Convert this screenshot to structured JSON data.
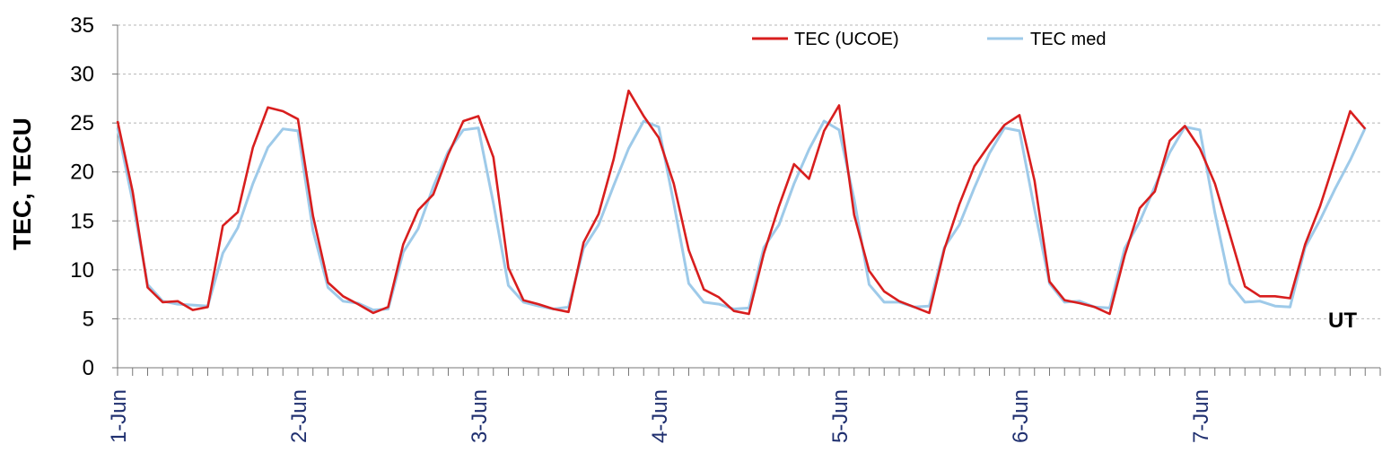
{
  "chart_data": {
    "type": "line",
    "ylabel": "TEC, TECU",
    "annotation": "UT",
    "ylim": [
      0,
      35
    ],
    "yticks": [
      0,
      5,
      10,
      15,
      20,
      25,
      30,
      35
    ],
    "grid": "horizontal dashed",
    "legend_position": "top-right",
    "x_tick_labels": [
      "1-Jun",
      "2-Jun",
      "3-Jun",
      "4-Jun",
      "5-Jun",
      "6-Jun",
      "7-Jun"
    ],
    "x_unit": "hours from 1-Jun 00 UT",
    "series": [
      {
        "name": "TEC (UCOE)",
        "color": "#d81e1e",
        "points": [
          [
            0,
            25.2
          ],
          [
            2,
            18
          ],
          [
            4,
            8.2
          ],
          [
            6,
            6.7
          ],
          [
            8,
            6.8
          ],
          [
            10,
            5.9
          ],
          [
            12,
            6.2
          ],
          [
            14,
            14.5
          ],
          [
            16,
            15.9
          ],
          [
            18,
            22.5
          ],
          [
            20,
            26.6
          ],
          [
            22,
            26.2
          ],
          [
            24,
            25.4
          ],
          [
            26,
            15.5
          ],
          [
            28,
            8.7
          ],
          [
            30,
            7.3
          ],
          [
            32,
            6.5
          ],
          [
            34,
            5.6
          ],
          [
            36,
            6.2
          ],
          [
            38,
            12.6
          ],
          [
            40,
            16.1
          ],
          [
            42,
            17.7
          ],
          [
            44,
            21.8
          ],
          [
            46,
            25.2
          ],
          [
            48,
            25.7
          ],
          [
            50,
            21.5
          ],
          [
            52,
            10.2
          ],
          [
            54,
            6.9
          ],
          [
            56,
            6.5
          ],
          [
            58,
            6
          ],
          [
            60,
            5.7
          ],
          [
            62,
            12.8
          ],
          [
            64,
            15.7
          ],
          [
            66,
            21.3
          ],
          [
            68,
            28.3
          ],
          [
            70,
            25.7
          ],
          [
            72,
            23.5
          ],
          [
            74,
            18.8
          ],
          [
            76,
            12
          ],
          [
            78,
            8
          ],
          [
            80,
            7.2
          ],
          [
            82,
            5.8
          ],
          [
            84,
            5.5
          ],
          [
            86,
            11.7
          ],
          [
            88,
            16.5
          ],
          [
            90,
            20.8
          ],
          [
            92,
            19.3
          ],
          [
            94,
            24.2
          ],
          [
            96,
            26.8
          ],
          [
            98,
            15.6
          ],
          [
            100,
            9.9
          ],
          [
            102,
            7.8
          ],
          [
            104,
            6.8
          ],
          [
            106,
            6.2
          ],
          [
            108,
            5.6
          ],
          [
            110,
            12.1
          ],
          [
            112,
            16.7
          ],
          [
            114,
            20.6
          ],
          [
            116,
            22.8
          ],
          [
            118,
            24.8
          ],
          [
            120,
            25.8
          ],
          [
            122,
            19.1
          ],
          [
            124,
            8.8
          ],
          [
            126,
            6.9
          ],
          [
            128,
            6.6
          ],
          [
            130,
            6.2
          ],
          [
            132,
            5.5
          ],
          [
            134,
            11.5
          ],
          [
            136,
            16.3
          ],
          [
            138,
            18
          ],
          [
            140,
            23.2
          ],
          [
            142,
            24.7
          ],
          [
            144,
            22.4
          ],
          [
            146,
            18.8
          ],
          [
            148,
            13.6
          ],
          [
            150,
            8.3
          ],
          [
            152,
            7.3
          ],
          [
            154,
            7.3
          ],
          [
            156,
            7.1
          ],
          [
            158,
            12.6
          ],
          [
            160,
            16.5
          ],
          [
            162,
            21.3
          ],
          [
            164,
            26.2
          ],
          [
            166,
            24.4
          ]
        ]
      },
      {
        "name": "TEC med",
        "color": "#9ecae9",
        "points": [
          [
            0,
            24.5
          ],
          [
            2,
            17
          ],
          [
            4,
            8.5
          ],
          [
            6,
            6.8
          ],
          [
            8,
            6.5
          ],
          [
            10,
            6.4
          ],
          [
            12,
            6.3
          ],
          [
            14,
            11.7
          ],
          [
            16,
            14.3
          ],
          [
            18,
            18.8
          ],
          [
            20,
            22.5
          ],
          [
            22,
            24.4
          ],
          [
            24,
            24.2
          ],
          [
            26,
            14
          ],
          [
            28,
            8.2
          ],
          [
            30,
            6.8
          ],
          [
            32,
            6.6
          ],
          [
            34,
            5.9
          ],
          [
            36,
            6
          ],
          [
            38,
            11.8
          ],
          [
            40,
            14.2
          ],
          [
            42,
            18.5
          ],
          [
            44,
            22.1
          ],
          [
            46,
            24.3
          ],
          [
            48,
            24.5
          ],
          [
            50,
            16.8
          ],
          [
            52,
            8.4
          ],
          [
            54,
            6.7
          ],
          [
            56,
            6.3
          ],
          [
            58,
            6
          ],
          [
            60,
            6.2
          ],
          [
            62,
            12.2
          ],
          [
            64,
            14.6
          ],
          [
            66,
            18.6
          ],
          [
            68,
            22.4
          ],
          [
            70,
            25.2
          ],
          [
            72,
            24.6
          ],
          [
            74,
            16.8
          ],
          [
            76,
            8.6
          ],
          [
            78,
            6.7
          ],
          [
            80,
            6.5
          ],
          [
            82,
            6
          ],
          [
            84,
            6.1
          ],
          [
            86,
            12.3
          ],
          [
            88,
            14.6
          ],
          [
            90,
            18.8
          ],
          [
            92,
            22.3
          ],
          [
            94,
            25.2
          ],
          [
            96,
            24.3
          ],
          [
            98,
            17.2
          ],
          [
            100,
            8.5
          ],
          [
            102,
            6.7
          ],
          [
            104,
            6.7
          ],
          [
            106,
            6.2
          ],
          [
            108,
            6.3
          ],
          [
            110,
            12.3
          ],
          [
            112,
            14.6
          ],
          [
            114,
            18.4
          ],
          [
            116,
            21.9
          ],
          [
            118,
            24.5
          ],
          [
            120,
            24.2
          ],
          [
            122,
            16.2
          ],
          [
            124,
            8.6
          ],
          [
            126,
            6.7
          ],
          [
            128,
            6.8
          ],
          [
            130,
            6.2
          ],
          [
            132,
            6.1
          ],
          [
            134,
            12.2
          ],
          [
            136,
            14.9
          ],
          [
            138,
            18.5
          ],
          [
            140,
            22
          ],
          [
            142,
            24.6
          ],
          [
            144,
            24.3
          ],
          [
            146,
            15.8
          ],
          [
            148,
            8.6
          ],
          [
            150,
            6.7
          ],
          [
            152,
            6.8
          ],
          [
            154,
            6.3
          ],
          [
            156,
            6.2
          ],
          [
            158,
            12.3
          ],
          [
            160,
            15.1
          ],
          [
            162,
            18.3
          ],
          [
            164,
            21.2
          ],
          [
            166,
            24.5
          ]
        ]
      }
    ]
  }
}
